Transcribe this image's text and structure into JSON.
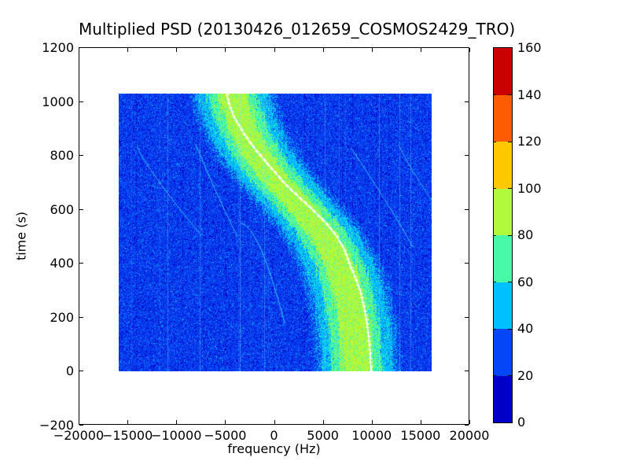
{
  "chart_data": {
    "type": "heatmap",
    "title": "Multiplied PSD (20130426_012659_COSMOS2429_TRO)",
    "xlabel": "frequency (Hz)",
    "ylabel": "time (s)",
    "xlim": [
      -20000,
      20000
    ],
    "ylim": [
      -200,
      1200
    ],
    "xticks": [
      -20000,
      -15000,
      -10000,
      -5000,
      0,
      5000,
      10000,
      15000,
      20000
    ],
    "xtick_labels": [
      "−20000",
      "−15000",
      "−10000",
      "−5000",
      "0",
      "5000",
      "10000",
      "15000",
      "20000"
    ],
    "yticks": [
      -200,
      0,
      200,
      400,
      600,
      800,
      1000,
      1200
    ],
    "ytick_labels": [
      "−200",
      "0",
      "200",
      "400",
      "600",
      "800",
      "1000",
      "1200"
    ],
    "grid": false,
    "data_extent": {
      "freq_hz": [
        -16000,
        16000
      ],
      "time_s": [
        0,
        1030
      ]
    },
    "colorbar": {
      "position": "right",
      "levels": [
        0,
        20,
        40,
        60,
        80,
        100,
        120,
        140,
        160
      ],
      "tick_labels": [
        "0",
        "20",
        "40",
        "60",
        "80",
        "100",
        "120",
        "140",
        "160"
      ],
      "colors_bottom_to_top": [
        "#0000c8",
        "#0546f8",
        "#00bfff",
        "#45f9a6",
        "#b0f93d",
        "#fec800",
        "#fe5c00",
        "#c80000"
      ]
    },
    "background_noise": {
      "colors": [
        "#0546f8",
        "#0334e0",
        "#0000c8",
        "#2e6cff",
        "#00bfff"
      ],
      "weights": [
        0.5,
        0.26,
        0.15,
        0.06,
        0.03
      ]
    },
    "band": {
      "comment": "broad doppler energy band, center track as [time_s, freq_hz]",
      "center_track": [
        [
          0,
          8400
        ],
        [
          150,
          8150
        ],
        [
          300,
          7400
        ],
        [
          400,
          6500
        ],
        [
          500,
          5000
        ],
        [
          550,
          4000
        ],
        [
          600,
          2800
        ],
        [
          650,
          1600
        ],
        [
          700,
          300
        ],
        [
          750,
          -800
        ],
        [
          800,
          -1800
        ],
        [
          850,
          -2600
        ],
        [
          900,
          -3300
        ],
        [
          950,
          -3800
        ],
        [
          1030,
          -4400
        ]
      ],
      "layers": [
        {
          "name": "outer-cyan",
          "half_width_hz": 3700,
          "color": "#00bfff"
        },
        {
          "name": "mid-green",
          "half_width_hz": 2570,
          "color": "#45f9a6"
        },
        {
          "name": "core-yellowgreen",
          "half_width_hz": 1530,
          "color": "#b0f93d"
        }
      ],
      "fleck_color": "#fec800"
    },
    "doppler_track": {
      "color": "#ffffff",
      "marker": "plus",
      "points": [
        [
          0,
          9800
        ],
        [
          100,
          9650
        ],
        [
          200,
          9300
        ],
        [
          300,
          8700
        ],
        [
          400,
          7600
        ],
        [
          450,
          7100
        ],
        [
          500,
          6300
        ],
        [
          550,
          5200
        ],
        [
          600,
          3800
        ],
        [
          650,
          2300
        ],
        [
          700,
          900
        ],
        [
          750,
          -300
        ],
        [
          800,
          -1500
        ],
        [
          850,
          -2600
        ],
        [
          900,
          -3500
        ],
        [
          950,
          -4300
        ],
        [
          1000,
          -4800
        ],
        [
          1030,
          -4950
        ]
      ]
    },
    "secondary_tracks": [
      {
        "kind": "quad",
        "p0": [
          835,
          -14150
        ],
        "c": [
          735,
          -12860
        ],
        "p1": [
          508,
          -7640
        ],
        "alpha": 0.8,
        "dash": false
      },
      {
        "kind": "quad",
        "p0": [
          843,
          -8120
        ],
        "c": [
          680,
          -6350
        ],
        "p1": [
          499,
          -3860
        ],
        "alpha": 0.8,
        "dash": false
      },
      {
        "kind": "quad",
        "p0": [
          549,
          -3460
        ],
        "c": [
          537,
          -1610
        ],
        "p1": [
          178,
          970
        ],
        "alpha": 0.8,
        "dash": false
      },
      {
        "kind": "quad",
        "p0": [
          826,
          7800
        ],
        "c": [
          600,
          12000
        ],
        "p1": [
          461,
          14070
        ],
        "alpha": 0.8,
        "dash": false
      },
      {
        "kind": "quad",
        "p0": [
          840,
          12620
        ],
        "c": [
          753,
          13750
        ],
        "p1": [
          636,
          16000
        ],
        "alpha": 0.7,
        "dash": false
      },
      {
        "kind": "quad",
        "p0": [
          470,
          -15840
        ],
        "c": [
          403,
          -12780
        ],
        "p1": [
          324,
          -9410
        ],
        "alpha": 0.45,
        "dash": true
      },
      {
        "kind": "quad",
        "p0": [
          1030,
          -15920
        ],
        "c": [
          972,
          -14790
        ],
        "p1": [
          907,
          -13510
        ],
        "alpha": 0.4,
        "dash": true
      },
      {
        "kind": "quad",
        "p0": [
          111,
          -3140
        ],
        "c": [
          53,
          -1530
        ],
        "p1": [
          3,
          880
        ],
        "alpha": 0.35,
        "dash": true
      }
    ],
    "interference": {
      "light_lines_hz": [
        -11000,
        -7700,
        -3600,
        -1100,
        5100,
        10650,
        12700,
        13850
      ],
      "gold_line": {
        "freq_hz": 7150,
        "time_range_s": [
          0,
          240
        ],
        "color": "#fec800"
      }
    }
  }
}
